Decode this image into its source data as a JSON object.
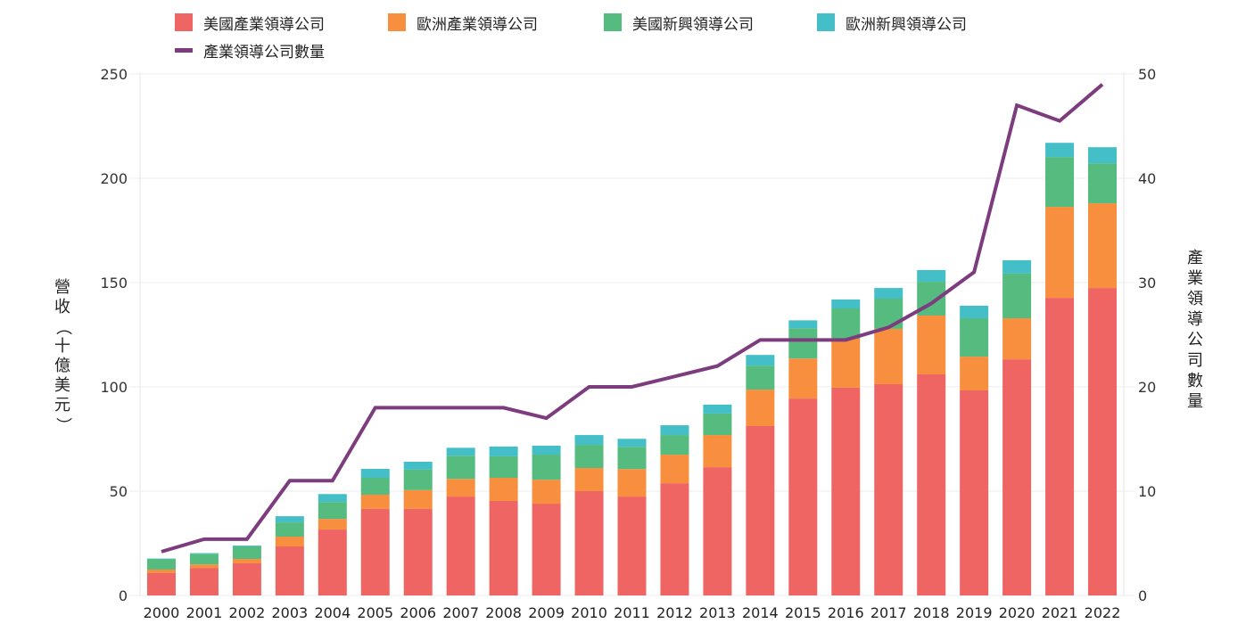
{
  "chart_data": {
    "type": "bar",
    "stacked": true,
    "title": "",
    "xlabel": "",
    "ylabel": "營收（十億美元）",
    "y2label": "產業領導公司數量",
    "ylim": [
      0,
      250
    ],
    "y2lim": [
      0,
      50
    ],
    "yticks": [
      "0",
      "50",
      "100",
      "150",
      "200",
      "250"
    ],
    "y2ticks": [
      "0",
      "10",
      "20",
      "30",
      "40",
      "50"
    ],
    "grid": true,
    "legend_position": "top",
    "categories": [
      "2000",
      "2001",
      "2002",
      "2003",
      "2004",
      "2005",
      "2006",
      "2007",
      "2008",
      "2009",
      "2010",
      "2011",
      "2012",
      "2013",
      "2014",
      "2015",
      "2016",
      "2017",
      "2018",
      "2019",
      "2020",
      "2021",
      "2022"
    ],
    "series": [
      {
        "name": "美國產業領導公司",
        "color": "#ef6564",
        "axis": "left",
        "kind": "bar",
        "values": [
          10.7,
          13.2,
          15.4,
          23.5,
          31.6,
          41.5,
          41.5,
          47.4,
          45.3,
          44.0,
          50.0,
          47.4,
          53.8,
          61.5,
          81.2,
          94.4,
          99.6,
          101.3,
          106.0,
          98.3,
          113.2,
          142.7,
          147.4
        ]
      },
      {
        "name": "歐洲產業領導公司",
        "color": "#f78f3f",
        "axis": "left",
        "kind": "bar",
        "values": [
          1.7,
          1.7,
          2.1,
          4.7,
          5.1,
          6.8,
          9.0,
          8.5,
          11.1,
          11.5,
          11.1,
          13.2,
          13.7,
          15.4,
          17.5,
          19.2,
          23.5,
          26.5,
          28.2,
          16.2,
          19.7,
          43.6,
          40.6
        ]
      },
      {
        "name": "美國新興領導公司",
        "color": "#55bb7e",
        "axis": "left",
        "kind": "bar",
        "values": [
          5.1,
          5.1,
          6.0,
          6.8,
          8.1,
          8.1,
          9.8,
          11.1,
          10.3,
          12.0,
          11.1,
          10.7,
          9.4,
          10.3,
          11.5,
          14.5,
          14.5,
          14.5,
          16.2,
          18.4,
          21.4,
          23.9,
          19.2
        ]
      },
      {
        "name": "歐洲新興領導公司",
        "color": "#44bfc8",
        "axis": "left",
        "kind": "bar",
        "values": [
          0.2,
          0.3,
          0.4,
          3.0,
          3.8,
          4.3,
          3.8,
          3.8,
          4.7,
          4.3,
          4.7,
          3.8,
          4.7,
          4.3,
          5.1,
          3.8,
          4.3,
          5.1,
          5.6,
          6.0,
          6.4,
          6.8,
          7.7
        ]
      },
      {
        "name": "產業領導公司數量",
        "color": "#7d3c7e",
        "axis": "right",
        "kind": "line",
        "values": [
          4.2,
          5.4,
          5.4,
          11,
          11,
          18,
          18,
          18,
          18,
          17,
          20,
          20,
          21,
          22,
          24.5,
          24.5,
          24.5,
          25.7,
          28,
          31,
          47,
          45.5,
          49
        ]
      }
    ]
  },
  "legend": {
    "items": [
      {
        "label": "美國產業領導公司",
        "color": "#ef6564",
        "kind": "swatch"
      },
      {
        "label": "歐洲產業領導公司",
        "color": "#f78f3f",
        "kind": "swatch"
      },
      {
        "label": "美國新興領導公司",
        "color": "#55bb7e",
        "kind": "swatch"
      },
      {
        "label": "歐洲新興領導公司",
        "color": "#44bfc8",
        "kind": "swatch"
      },
      {
        "label": "產業領導公司數量",
        "color": "#7d3c7e",
        "kind": "line"
      }
    ]
  },
  "axes": {
    "left_title_chars": [
      "營",
      "收",
      "（",
      "十",
      "億",
      "美",
      "元",
      "）"
    ],
    "right_title_chars": [
      "產",
      "業",
      "領",
      "導",
      "公",
      "司",
      "數",
      "量"
    ]
  }
}
